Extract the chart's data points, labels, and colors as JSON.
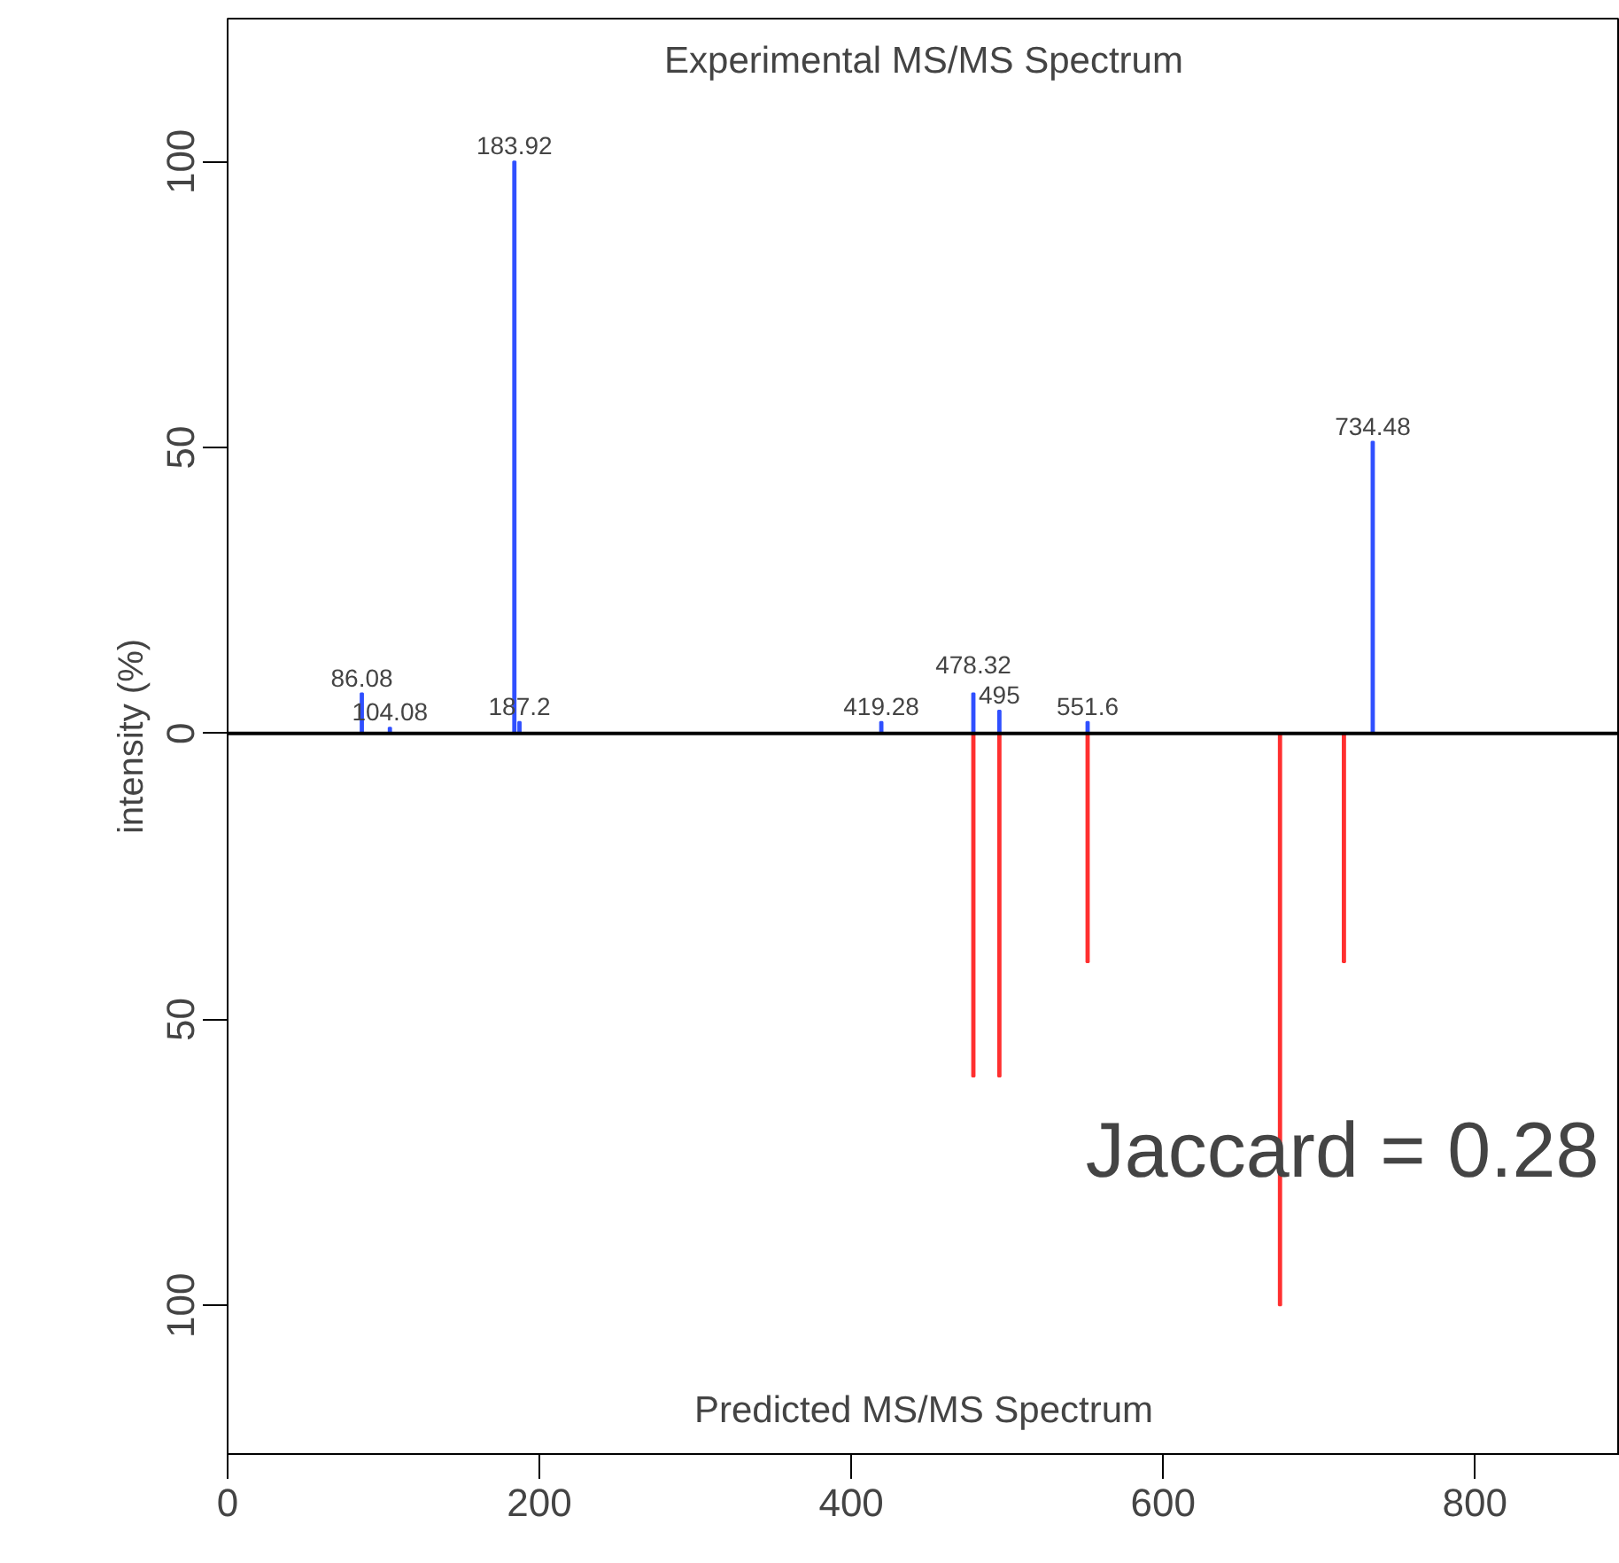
{
  "chart_data": {
    "type": "bar",
    "ylabel": "intensity (%)",
    "annotations": [
      "Experimental MS/MS Spectrum",
      "Predicted MS/MS Spectrum",
      "Jaccard = 0.28",
      {
        "text": "86.08",
        "x": 86.08,
        "y": 7
      },
      {
        "text": "104.08",
        "x": 104.08,
        "y": 1
      },
      {
        "text": "183.92",
        "x": 183.92,
        "y": 100
      },
      {
        "text": "187.2",
        "x": 187.2,
        "y": 2
      },
      {
        "text": "419.28",
        "x": 419.28,
        "y": 2
      },
      {
        "text": "478.32",
        "x": 478.32,
        "y": 7
      },
      {
        "text": "495",
        "x": 495,
        "y": 4
      },
      {
        "text": "551.6",
        "x": 551.6,
        "y": 2
      },
      {
        "text": "734.48",
        "x": 734.48,
        "y": 51
      }
    ],
    "series": [
      {
        "color": "#3050ff",
        "x": [
          86.08,
          104.08,
          183.92,
          187.2,
          419.28,
          478.32,
          495,
          551.6,
          734.48
        ],
        "values": [
          7,
          1,
          100,
          2,
          2,
          7,
          4,
          2,
          51
        ]
      },
      {
        "color": "#ff3030",
        "x": [
          478.32,
          495,
          551.6,
          675,
          716
        ],
        "values": [
          -60,
          -60,
          -40,
          -100,
          -40
        ]
      }
    ],
    "xlim": [
      0,
      893
    ],
    "xticks": [
      0,
      200,
      400,
      600,
      800
    ],
    "ylim": [
      -126,
      125
    ],
    "yticks": [
      {
        "value": -100,
        "label": "100"
      },
      {
        "value": -50,
        "label": "50"
      },
      0,
      50,
      100
    ],
    "ref_lines": [
      {
        "axis": "y",
        "value": 0,
        "color": "#000000"
      }
    ],
    "grid": false
  }
}
